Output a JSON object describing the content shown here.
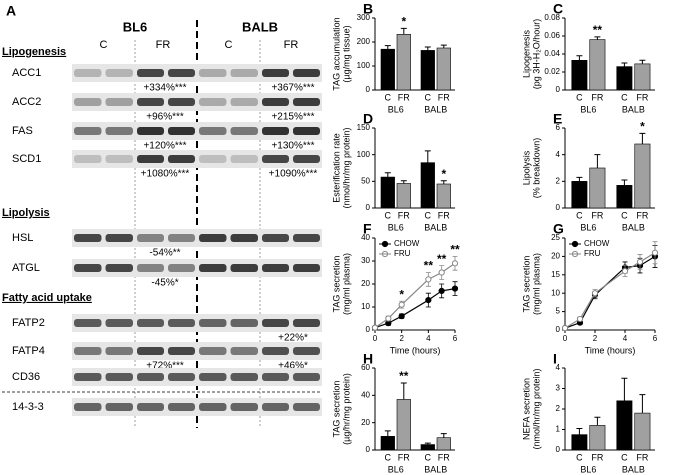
{
  "blot": {
    "panel": "A",
    "groups": [
      "BL6",
      "BALB"
    ],
    "conditions": [
      "C",
      "FR",
      "C",
      "FR"
    ],
    "sections": [
      {
        "title": "Lipogenesis",
        "rows": [
          {
            "label": "ACC1",
            "notes": [
              null,
              "+334%***",
              null,
              "+367%***"
            ]
          },
          {
            "label": "ACC2",
            "notes": [
              null,
              "+96%***",
              null,
              "+215%***"
            ]
          },
          {
            "label": "FAS",
            "notes": [
              null,
              "+120%***",
              null,
              "+130%***"
            ]
          },
          {
            "label": "SCD1",
            "notes": [
              null,
              "+1080%***",
              null,
              "+1090%***"
            ]
          }
        ]
      },
      {
        "title": "Lipolysis",
        "rows": [
          {
            "label": "HSL",
            "notes": [
              null,
              "-54%**",
              null,
              null
            ]
          },
          {
            "label": "ATGL",
            "notes": [
              null,
              "-45%*",
              null,
              null
            ]
          }
        ]
      },
      {
        "title": "Fatty acid uptake",
        "rows": [
          {
            "label": "FATP2",
            "notes": [
              null,
              null,
              null,
              "+22%*"
            ]
          },
          {
            "label": "FATP4",
            "notes": [
              null,
              "+72%***",
              null,
              "+46%*"
            ]
          },
          {
            "label": "CD36",
            "notes": [
              null,
              null,
              null,
              null
            ]
          }
        ]
      }
    ],
    "loading_control": {
      "label": "14-3-3"
    }
  },
  "chart_data": [
    {
      "type": "bar",
      "panel": "B",
      "ylabel": [
        "TAG accumulation",
        "(µg/mg tissue)"
      ],
      "categories": [
        "C",
        "FR",
        "C",
        "FR"
      ],
      "groups": [
        "BL6",
        "BALB"
      ],
      "values": [
        170,
        232,
        165,
        175
      ],
      "errors": [
        15,
        25,
        14,
        12
      ],
      "significance": [
        null,
        "*",
        null,
        null
      ],
      "colors": [
        "#000000",
        "#a0a0a0",
        "#000000",
        "#a0a0a0"
      ],
      "ylim": [
        0,
        300
      ],
      "yticks": [
        0,
        100,
        200,
        300
      ]
    },
    {
      "type": "bar",
      "panel": "C",
      "ylabel": [
        "Lipogenesis",
        "(pg 3H-H₂O/hour)"
      ],
      "categories": [
        "C",
        "FR",
        "C",
        "FR"
      ],
      "groups": [
        "BL6",
        "BALB"
      ],
      "values": [
        0.033,
        0.056,
        0.026,
        0.029
      ],
      "errors": [
        0.005,
        0.003,
        0.004,
        0.004
      ],
      "significance": [
        null,
        "**",
        null,
        null
      ],
      "colors": [
        "#000000",
        "#a0a0a0",
        "#000000",
        "#a0a0a0"
      ],
      "ylim": [
        0,
        0.08
      ],
      "yticks": [
        0,
        0.02,
        0.04,
        0.06,
        0.08
      ]
    },
    {
      "type": "bar",
      "panel": "D",
      "ylabel": [
        "Esterification rate",
        "(nmol/hr/mg protein)"
      ],
      "categories": [
        "C",
        "FR",
        "C",
        "FR"
      ],
      "groups": [
        "BL6",
        "BALB"
      ],
      "values": [
        58,
        46,
        85,
        45
      ],
      "errors": [
        8,
        5,
        22,
        6
      ],
      "significance": [
        null,
        null,
        null,
        "*"
      ],
      "colors": [
        "#000000",
        "#a0a0a0",
        "#000000",
        "#a0a0a0"
      ],
      "ylim": [
        0,
        150
      ],
      "yticks": [
        0,
        50,
        100,
        150
      ]
    },
    {
      "type": "bar",
      "panel": "E",
      "ylabel": [
        "Lipolysis",
        "(% breakdown)"
      ],
      "categories": [
        "C",
        "FR",
        "C",
        "FR"
      ],
      "groups": [
        "BL6",
        "BALB"
      ],
      "values": [
        2.0,
        3.0,
        1.7,
        4.8
      ],
      "errors": [
        0.3,
        1.0,
        0.4,
        0.8
      ],
      "significance": [
        null,
        null,
        null,
        "*"
      ],
      "colors": [
        "#000000",
        "#a0a0a0",
        "#000000",
        "#a0a0a0"
      ],
      "ylim": [
        0,
        6
      ],
      "yticks": [
        0,
        2,
        4,
        6
      ]
    },
    {
      "type": "line",
      "panel": "F",
      "ylabel": [
        "TAG secretion",
        "(mg/ml plasma)"
      ],
      "xlabel": "Time (hours)",
      "x": [
        0,
        1,
        2,
        4,
        5,
        6
      ],
      "series": [
        {
          "name": "CHOW",
          "color": "#000000",
          "fill": "#000000",
          "values": [
            1,
            3,
            6,
            13,
            17,
            18
          ],
          "errors": [
            0.5,
            1,
            1,
            3,
            3,
            3
          ]
        },
        {
          "name": "FRU",
          "color": "#888888",
          "fill": "#ffffff",
          "values": [
            1,
            5,
            11,
            22,
            25,
            29
          ],
          "errors": [
            0.5,
            1,
            1.5,
            3,
            3,
            3
          ]
        }
      ],
      "significance": [
        null,
        null,
        "*",
        "**",
        "**",
        "**"
      ],
      "legend": "upper left",
      "xlim": [
        0,
        6
      ],
      "xticks": [
        0,
        2,
        4,
        6
      ],
      "ylim": [
        0,
        40
      ],
      "yticks": [
        0,
        10,
        20,
        30,
        40
      ]
    },
    {
      "type": "line",
      "panel": "G",
      "ylabel": [
        "TAG secretion",
        "(mg/ml plasma)"
      ],
      "xlabel": "Time (hours)",
      "x": [
        0,
        1,
        2,
        4,
        5,
        6
      ],
      "series": [
        {
          "name": "CHOW",
          "color": "#000000",
          "fill": "#000000",
          "values": [
            0.5,
            2,
            9.5,
            17,
            17.5,
            20
          ],
          "errors": [
            0.3,
            0.5,
            1,
            1.5,
            2,
            3
          ]
        },
        {
          "name": "FRU",
          "color": "#888888",
          "fill": "#ffffff",
          "values": [
            0.5,
            3,
            10,
            16,
            18.5,
            21
          ],
          "errors": [
            0.3,
            0.5,
            1,
            1.5,
            2,
            3
          ]
        }
      ],
      "legend": "upper left",
      "xlim": [
        0,
        6
      ],
      "xticks": [
        0,
        2,
        4,
        6
      ],
      "ylim": [
        0,
        25
      ],
      "yticks": [
        0,
        5,
        10,
        15,
        20,
        25
      ]
    },
    {
      "type": "bar",
      "panel": "H",
      "ylabel": [
        "TAG secretion",
        "(µg/hr/mg protein)"
      ],
      "categories": [
        "C",
        "FR",
        "C",
        "FR"
      ],
      "groups": [
        "BL6",
        "BALB"
      ],
      "values": [
        10,
        37,
        4,
        9
      ],
      "errors": [
        4,
        12,
        1,
        3
      ],
      "significance": [
        null,
        "**",
        null,
        null
      ],
      "colors": [
        "#000000",
        "#a0a0a0",
        "#000000",
        "#a0a0a0"
      ],
      "ylim": [
        0,
        60
      ],
      "yticks": [
        0,
        20,
        40,
        60
      ]
    },
    {
      "type": "bar",
      "panel": "I",
      "ylabel": [
        "NEFA secretion",
        "(nmol/hr/mg protein)"
      ],
      "categories": [
        "C",
        "FR",
        "C",
        "FR"
      ],
      "groups": [
        "BL6",
        "BALB"
      ],
      "values": [
        0.75,
        1.2,
        2.4,
        1.8
      ],
      "errors": [
        0.3,
        0.4,
        1.1,
        0.9
      ],
      "colors": [
        "#000000",
        "#a0a0a0",
        "#000000",
        "#a0a0a0"
      ],
      "ylim": [
        0,
        4
      ],
      "yticks": [
        0,
        1,
        2,
        3,
        4
      ]
    }
  ]
}
